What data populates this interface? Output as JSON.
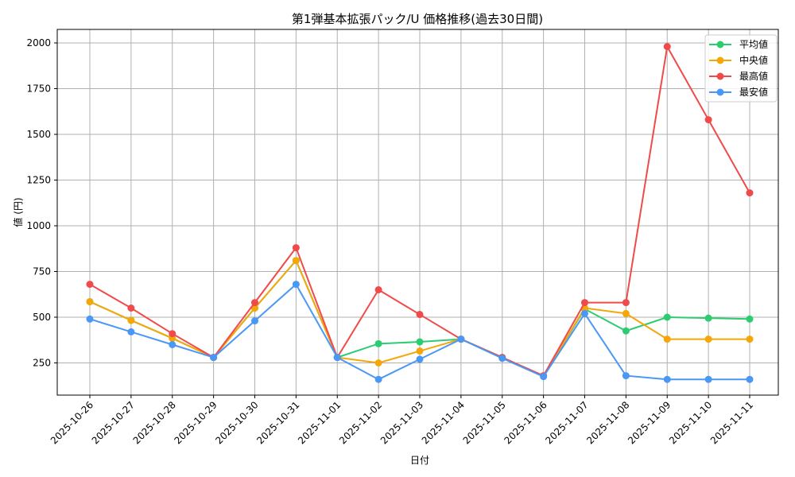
{
  "chart_data": {
    "type": "line",
    "title": "第1弾基本拡張パック/U 価格推移(過去30日間)",
    "xlabel": "日付",
    "ylabel": "値 (円)",
    "ylim": [
      70,
      2070
    ],
    "yticks": [
      250,
      500,
      750,
      1000,
      1250,
      1500,
      1750,
      2000
    ],
    "grid": true,
    "legend_position": "upper right",
    "x": [
      "2025-10-26",
      "2025-10-27",
      "2025-10-28",
      "2025-10-29",
      "2025-10-30",
      "2025-10-31",
      "2025-11-01",
      "2025-11-02",
      "2025-11-03",
      "2025-11-04",
      "2025-11-05",
      "2025-11-06",
      "2025-11-07",
      "2025-11-08",
      "2025-11-09",
      "2025-11-10",
      "2025-11-11"
    ],
    "series": [
      {
        "name": "平均値",
        "color": "#2ecc71",
        "values": [
          585,
          483,
          385,
          280,
          550,
          810,
          280,
          355,
          365,
          380,
          280,
          178,
          545,
          425,
          500,
          495,
          490
        ]
      },
      {
        "name": "中央値",
        "color": "#f5a70a",
        "values": [
          585,
          483,
          385,
          280,
          550,
          810,
          280,
          250,
          315,
          380,
          280,
          178,
          550,
          520,
          380,
          380,
          380
        ]
      },
      {
        "name": "最高値",
        "color": "#f04a4a",
        "values": [
          680,
          550,
          410,
          280,
          580,
          880,
          280,
          650,
          515,
          380,
          280,
          180,
          580,
          580,
          1980,
          1580,
          1180
        ]
      },
      {
        "name": "最安値",
        "color": "#4a98f5",
        "values": [
          490,
          420,
          350,
          280,
          480,
          680,
          280,
          160,
          270,
          380,
          275,
          175,
          520,
          180,
          160,
          160,
          160
        ]
      }
    ]
  }
}
